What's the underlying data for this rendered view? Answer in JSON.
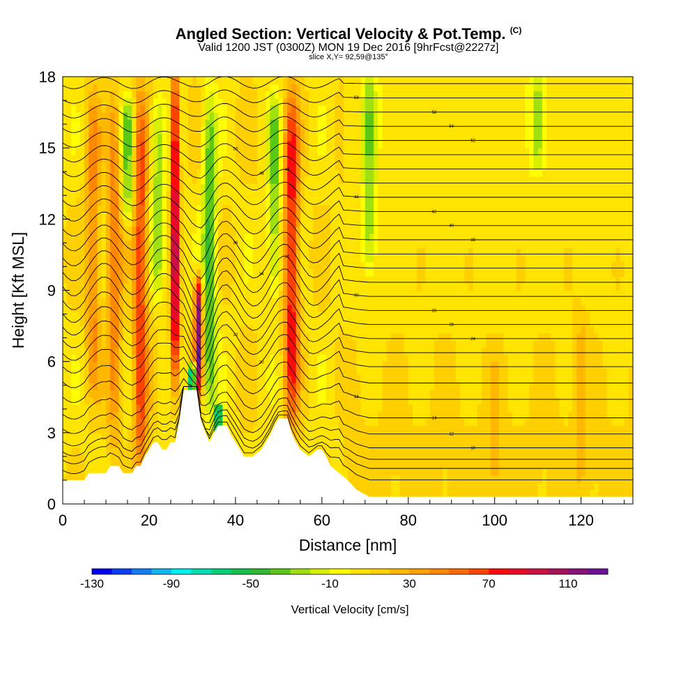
{
  "header": {
    "title": "Angled Section: Vertical Velocity & Pot.Temp.",
    "title_mark": "(C)",
    "subtitle": "Valid 1200 JST (0300Z) MON 19 Dec 2016 [9hrFcst@2227z]",
    "slice": "slice X,Y= 92,59@135°"
  },
  "chart_data": {
    "type": "heatmap",
    "xlabel": "Distance [nm]",
    "ylabel": "Height [Kft MSL]",
    "xlim": [
      0,
      132
    ],
    "ylim": [
      0,
      18
    ],
    "xticks": [
      0,
      20,
      40,
      60,
      80,
      100,
      120
    ],
    "yticks": [
      0,
      3,
      6,
      9,
      12,
      15,
      18
    ],
    "xtick_labels": [
      "0",
      "20",
      "40",
      "60",
      "80",
      "100",
      "120"
    ],
    "ytick_labels": [
      "0",
      "3",
      "6",
      "9",
      "12",
      "15",
      "18"
    ],
    "terrain_profile": [
      [
        0,
        1.0
      ],
      [
        5,
        1.0
      ],
      [
        6,
        1.3
      ],
      [
        10,
        1.3
      ],
      [
        11,
        1.6
      ],
      [
        13,
        1.6
      ],
      [
        14,
        1.3
      ],
      [
        16,
        1.3
      ],
      [
        17,
        1.6
      ],
      [
        18,
        1.6
      ],
      [
        19,
        2.0
      ],
      [
        20,
        2.3
      ],
      [
        21,
        2.6
      ],
      [
        22,
        2.6
      ],
      [
        23,
        2.3
      ],
      [
        24,
        2.3
      ],
      [
        25,
        2.6
      ],
      [
        26,
        2.6
      ],
      [
        27,
        3.5
      ],
      [
        28,
        4.8
      ],
      [
        31,
        4.8
      ],
      [
        32,
        3.5
      ],
      [
        33,
        3.0
      ],
      [
        34,
        2.6
      ],
      [
        35,
        3.0
      ],
      [
        36,
        3.3
      ],
      [
        38,
        3.3
      ],
      [
        39,
        2.9
      ],
      [
        40,
        2.6
      ],
      [
        42,
        2.0
      ],
      [
        44,
        2.0
      ],
      [
        46,
        2.3
      ],
      [
        47,
        2.6
      ],
      [
        48,
        2.9
      ],
      [
        49,
        3.3
      ],
      [
        50,
        3.6
      ],
      [
        52,
        3.6
      ],
      [
        53,
        3.0
      ],
      [
        54,
        2.6
      ],
      [
        55,
        2.3
      ],
      [
        57,
        2.0
      ],
      [
        59,
        2.3
      ],
      [
        60,
        2.3
      ],
      [
        61,
        2.0
      ],
      [
        62,
        1.6
      ],
      [
        64,
        1.3
      ],
      [
        66,
        1.0
      ],
      [
        68,
        0.6
      ],
      [
        71,
        0.3
      ],
      [
        73,
        0.3
      ],
      [
        132,
        0.3
      ]
    ],
    "vertical_velocity_features": [
      {
        "x": 26,
        "z_bottom": 5.0,
        "z_top": 18,
        "peak_cm_s": 100
      },
      {
        "x": 31.5,
        "z_bottom": 4.8,
        "z_top": 9.5,
        "peak_cm_s": 110
      },
      {
        "x": 30,
        "z_bottom": 4.9,
        "z_top": 5.8,
        "peak_cm_s": -110
      },
      {
        "x": 36,
        "z_bottom": 2.8,
        "z_top": 4.2,
        "peak_cm_s": -80
      },
      {
        "x": 34,
        "z_bottom": 4.0,
        "z_top": 17,
        "peak_cm_s": -50
      },
      {
        "x": 53,
        "z_bottom": 3.8,
        "z_top": 17,
        "peak_cm_s": 70
      },
      {
        "x": 49,
        "z_bottom": 9.0,
        "z_top": 17,
        "peak_cm_s": -40
      },
      {
        "x": 18,
        "z_bottom": 1.6,
        "z_top": 17,
        "peak_cm_s": 60
      },
      {
        "x": 12,
        "z_bottom": 3.0,
        "z_top": 17,
        "peak_cm_s": 40
      },
      {
        "x": 7,
        "z_bottom": 5.0,
        "z_top": 17,
        "peak_cm_s": 35
      },
      {
        "x": 15,
        "z_bottom": 12.0,
        "z_top": 17,
        "peak_cm_s": -40
      },
      {
        "x": 22,
        "z_bottom": 9.0,
        "z_top": 17,
        "peak_cm_s": -35
      },
      {
        "x": 71,
        "z_bottom": 10.0,
        "z_top": 18,
        "peak_cm_s": -35
      },
      {
        "x": 110,
        "z_bottom": 14.0,
        "z_top": 18,
        "peak_cm_s": -30
      },
      {
        "x": 100,
        "z_bottom": 1.0,
        "z_top": 6.0,
        "peak_cm_s": 15
      },
      {
        "x": 120,
        "z_bottom": 1.0,
        "z_top": 8.0,
        "peak_cm_s": 15
      }
    ],
    "isentropes_C": {
      "from": 4,
      "to": 64,
      "step": 2,
      "far_field_height_kft": [
        0.8,
        1.3,
        1.7,
        2.2,
        2.8,
        3.5,
        4.3,
        5.0,
        5.7,
        6.3,
        6.9,
        7.5,
        8.1,
        8.7,
        9.3,
        9.9,
        10.5,
        11.1,
        11.7,
        12.3,
        12.9,
        13.5,
        14.1,
        14.7,
        15.3,
        15.9,
        16.5,
        17.1,
        17.7,
        18.3,
        18.9
      ]
    },
    "contour_labels": [
      "10",
      "12",
      "14",
      "16",
      "18",
      "20",
      "22",
      "24",
      "26",
      "28",
      "30",
      "32",
      "34",
      "36",
      "38",
      "40",
      "42",
      "44",
      "46",
      "48",
      "50",
      "52",
      "54",
      "56",
      "58",
      "60"
    ],
    "colorbar": {
      "label": "Vertical Velocity [cm/s]",
      "tick_labels": [
        "-130",
        "-90",
        "-50",
        "-10",
        "30",
        "70",
        "110"
      ],
      "colors": [
        "#0000f0",
        "#0a3ef5",
        "#0f7cf5",
        "#0db8f2",
        "#00f0f0",
        "#00dcb4",
        "#00d078",
        "#16c04c",
        "#30b830",
        "#5ac814",
        "#a0e010",
        "#d8f000",
        "#ffff00",
        "#ffe400",
        "#ffd000",
        "#ffb800",
        "#ffa000",
        "#ff8800",
        "#ff6a00",
        "#ff4400",
        "#ff0a0a",
        "#e80a28",
        "#cc1044",
        "#a8105a",
        "#88107a",
        "#6a1294"
      ]
    }
  }
}
